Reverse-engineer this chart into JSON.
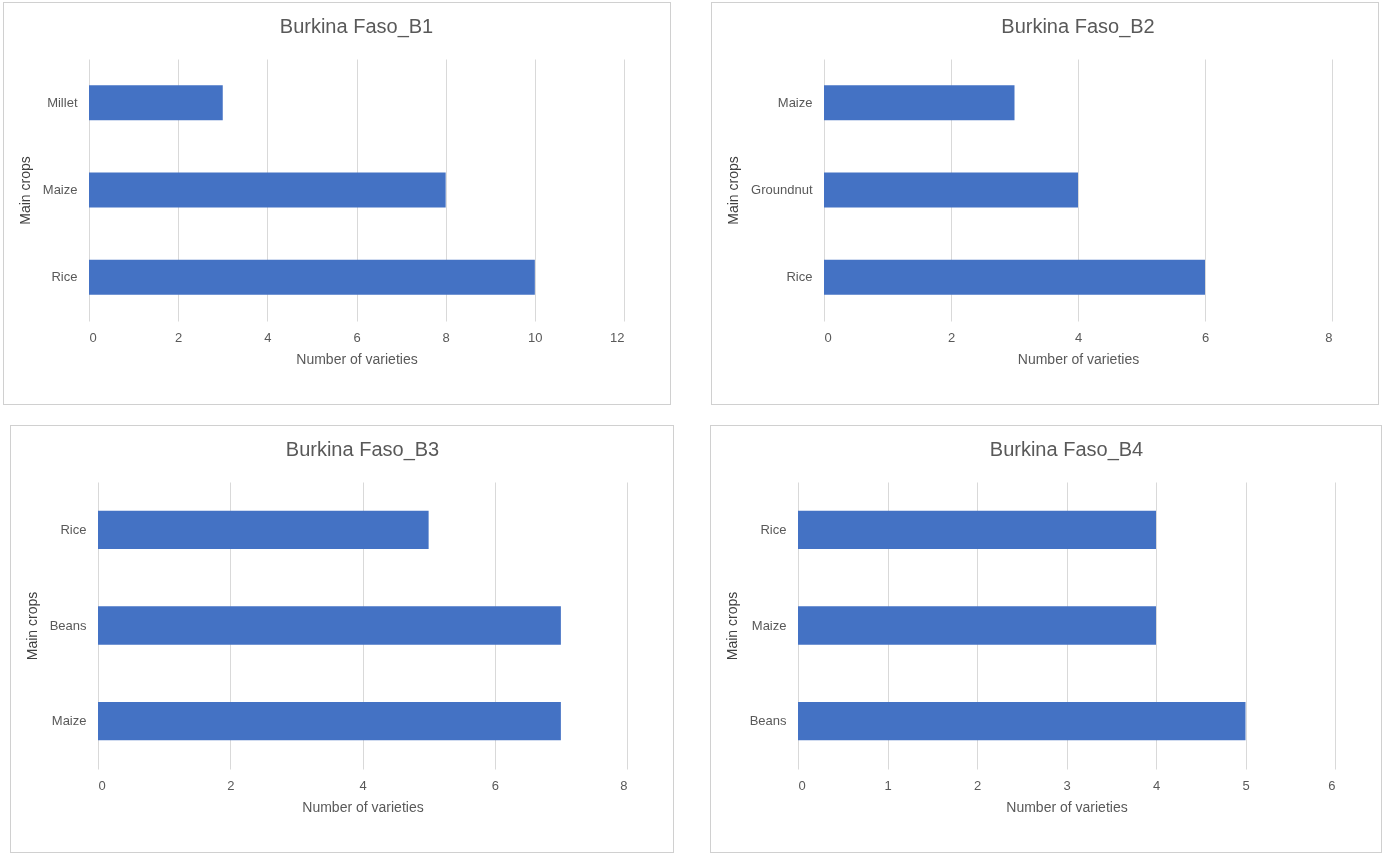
{
  "chart_data": [
    {
      "type": "bar",
      "orientation": "horizontal",
      "title": "Burkina Faso_B1",
      "xlabel": "Number of varieties",
      "ylabel": "Main crops",
      "categories": [
        "Millet",
        "Maize",
        "Rice"
      ],
      "values": [
        3,
        8,
        10
      ],
      "color": "#4472c4",
      "xlim": [
        0,
        12
      ],
      "xticks": [
        0,
        2,
        4,
        6,
        8,
        10,
        12
      ],
      "grid": "x"
    },
    {
      "type": "bar",
      "orientation": "horizontal",
      "title": "Burkina Faso_B2",
      "xlabel": "Number of varieties",
      "ylabel": "Main crops",
      "categories": [
        "Maize",
        "Groundnut",
        "Rice"
      ],
      "values": [
        3,
        4,
        6
      ],
      "color": "#4472c4",
      "xlim": [
        0,
        8
      ],
      "xticks": [
        0,
        2,
        4,
        6,
        8
      ],
      "grid": "x"
    },
    {
      "type": "bar",
      "orientation": "horizontal",
      "title": "Burkina Faso_B3",
      "xlabel": "Number of varieties",
      "ylabel": "Main crops",
      "categories": [
        "Rice",
        "Beans",
        "Maize"
      ],
      "values": [
        5,
        7,
        7
      ],
      "color": "#4472c4",
      "xlim": [
        0,
        8
      ],
      "xticks": [
        0,
        2,
        4,
        6,
        8
      ],
      "grid": "x"
    },
    {
      "type": "bar",
      "orientation": "horizontal",
      "title": "Burkina Faso_B4",
      "xlabel": "Number of varieties",
      "ylabel": "Main crops",
      "categories": [
        "Rice",
        "Maize",
        "Beans"
      ],
      "values": [
        4,
        4,
        5
      ],
      "color": "#4472c4",
      "xlim": [
        0,
        6
      ],
      "xticks": [
        0,
        1,
        2,
        3,
        4,
        5,
        6
      ],
      "grid": "x"
    }
  ]
}
